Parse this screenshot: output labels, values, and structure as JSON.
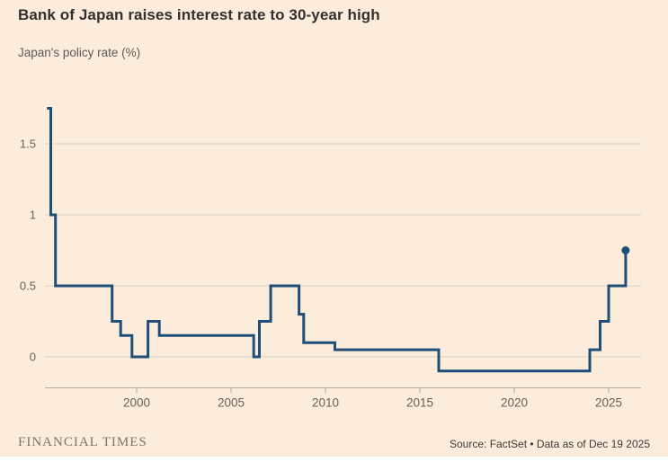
{
  "header": {
    "title": "Bank of Japan raises interest rate to 30-year high",
    "subtitle": "Japan's policy rate (%)"
  },
  "footer": {
    "brand": "FINANCIAL TIMES",
    "source": "Source: FactSet • Data as of Dec 19 2025"
  },
  "colors": {
    "background": "#fcecdc",
    "line": "#1f4e79",
    "grid": "#d9d0c2",
    "axis": "#b3aa9c",
    "tick_label": "#66605b",
    "title_text": "#33302e"
  },
  "chart_data": {
    "type": "line",
    "step": true,
    "title": "Bank of Japan raises interest rate to 30-year high",
    "ylabel": "Japan's policy rate (%)",
    "xlabel": "",
    "x_domain": [
      1995.25,
      2026.7
    ],
    "ylim": [
      -0.22,
      1.85
    ],
    "y_gridlines": [
      0,
      0.5,
      1,
      1.5
    ],
    "y_gridline_labels": [
      "0",
      "0.5",
      "1",
      "1.5"
    ],
    "x_ticks": [
      2000,
      2005,
      2010,
      2015,
      2020,
      2025
    ],
    "x_tick_labels": [
      "2000",
      "2005",
      "2010",
      "2015",
      "2020",
      "2025"
    ],
    "grid_on": true,
    "legend": "none",
    "end_marker": true,
    "final_value": 0.75,
    "points": [
      [
        1995.25,
        1.75
      ],
      [
        1995.45,
        1.0
      ],
      [
        1995.7,
        0.5
      ],
      [
        1998.7,
        0.25
      ],
      [
        1999.15,
        0.15
      ],
      [
        1999.75,
        0.0
      ],
      [
        2000.6,
        0.25
      ],
      [
        2001.2,
        0.15
      ],
      [
        2006.2,
        0.0
      ],
      [
        2006.5,
        0.25
      ],
      [
        2007.1,
        0.5
      ],
      [
        2008.6,
        0.3
      ],
      [
        2008.85,
        0.1
      ],
      [
        2010.5,
        0.05
      ],
      [
        2016.0,
        -0.1
      ],
      [
        2024.0,
        0.05
      ],
      [
        2024.55,
        0.25
      ],
      [
        2025.0,
        0.5
      ],
      [
        2025.9,
        0.75
      ]
    ]
  }
}
